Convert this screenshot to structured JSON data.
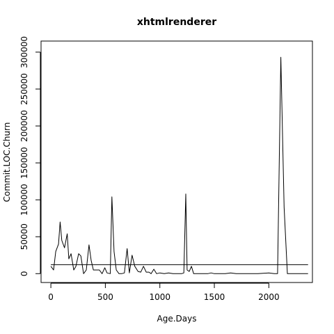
{
  "chart_data": {
    "type": "line",
    "title": "xhtmlrenderer",
    "xlabel": "Age.Days",
    "ylabel": "Commit.LOC.Churn",
    "xlim": [
      -90,
      2400
    ],
    "ylim": [
      -12000,
      315000
    ],
    "xticks": [
      0,
      500,
      1000,
      1500,
      2000
    ],
    "yticks": [
      0,
      50000,
      100000,
      150000,
      200000,
      250000,
      300000
    ],
    "grid": false,
    "legend": "none",
    "series": [
      {
        "x": [
          0,
          25,
          45,
          70,
          85,
          100,
          125,
          150,
          165,
          185,
          210,
          230,
          255,
          275,
          300,
          325,
          350,
          370,
          390,
          420,
          445,
          470,
          495,
          515,
          545,
          560,
          580,
          600,
          625,
          650,
          675,
          700,
          720,
          745,
          770,
          800,
          825,
          850,
          875,
          900,
          920,
          945,
          970,
          1000,
          1040,
          1080,
          1120,
          1160,
          1200,
          1220,
          1238,
          1250,
          1270,
          1290,
          1310,
          1350,
          1400,
          1440,
          1470,
          1500,
          1550,
          1600,
          1650,
          1700,
          1800,
          1900,
          2000,
          2050,
          2080,
          2110,
          2140,
          2170,
          2300,
          2360
        ],
        "y": [
          10000,
          5000,
          30000,
          40000,
          70000,
          45000,
          35000,
          54000,
          20000,
          27000,
          5000,
          10000,
          27000,
          24000,
          0,
          5000,
          39000,
          18000,
          5000,
          5000,
          5000,
          0,
          8000,
          1000,
          0,
          104000,
          30000,
          5000,
          0,
          0,
          1000,
          34000,
          1000,
          25000,
          10000,
          3000,
          2000,
          10000,
          2000,
          2000,
          0,
          6000,
          0,
          1000,
          0,
          1000,
          0,
          0,
          0,
          1000,
          108000,
          5000,
          3000,
          10000,
          0,
          0,
          0,
          0,
          1000,
          0,
          0,
          0,
          1000,
          0,
          0,
          0,
          1000,
          0,
          0,
          293000,
          90000,
          0,
          0,
          0
        ]
      }
    ],
    "reference_line": {
      "y": 12200
    }
  }
}
